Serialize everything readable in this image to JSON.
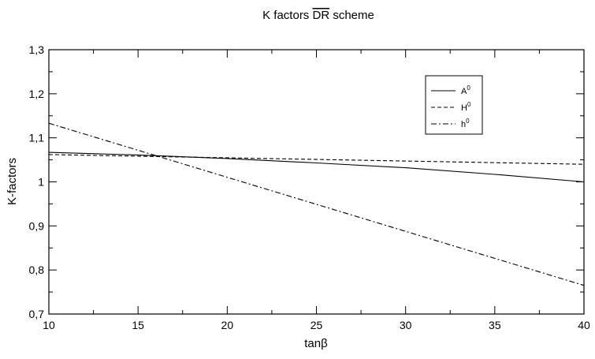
{
  "chart_data": {
    "type": "line",
    "title_prefix": "K factors ",
    "title_scheme": "DR",
    "title_suffix": " scheme",
    "xlabel": "tanβ",
    "ylabel": "K-factors",
    "xlim": [
      10,
      40
    ],
    "ylim": [
      0.7,
      1.3
    ],
    "x_ticks": [
      10,
      15,
      20,
      25,
      30,
      35,
      40
    ],
    "y_ticks": [
      0.7,
      0.8,
      0.9,
      1.0,
      1.1,
      1.2,
      1.3
    ],
    "x_tick_labels": [
      "10",
      "15",
      "20",
      "25",
      "30",
      "35",
      "40"
    ],
    "y_tick_labels": [
      "0,7",
      "0,8",
      "0,9",
      "1",
      "1,1",
      "1,2",
      "1,3"
    ],
    "grid": false,
    "legend_position": "top-right",
    "series": [
      {
        "name": "A",
        "sup": "0",
        "style": "solid",
        "x": [
          10,
          15,
          20,
          25,
          30,
          35,
          40
        ],
        "y": [
          1.067,
          1.061,
          1.053,
          1.043,
          1.032,
          1.017,
          1.0
        ]
      },
      {
        "name": "H",
        "sup": "0",
        "style": "dashed",
        "x": [
          10,
          40
        ],
        "y": [
          1.062,
          1.04
        ]
      },
      {
        "name": "h",
        "sup": "0",
        "style": "dashdot",
        "x": [
          10,
          40
        ],
        "y": [
          1.133,
          0.765
        ]
      }
    ]
  }
}
